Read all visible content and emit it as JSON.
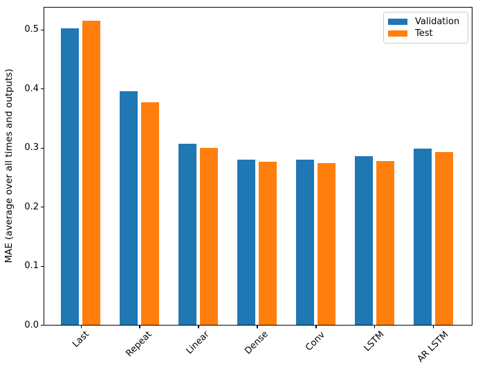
{
  "chart_data": {
    "type": "bar",
    "title": "",
    "xlabel": "",
    "ylabel": "MAE (average over all times and outputs)",
    "categories": [
      "Last",
      "Repeat",
      "Linear",
      "Dense",
      "Conv",
      "LSTM",
      "AR LSTM"
    ],
    "series": [
      {
        "name": "Validation",
        "color": "#1f77b4",
        "values": [
          0.502,
          0.395,
          0.306,
          0.28,
          0.28,
          0.286,
          0.298
        ]
      },
      {
        "name": "Test",
        "color": "#ff7f0e",
        "values": [
          0.515,
          0.377,
          0.299,
          0.276,
          0.274,
          0.277,
          0.292
        ]
      }
    ],
    "ylim": [
      0,
      0.539
    ],
    "y_ticks": [
      {
        "label": "0.0",
        "value": 0.0
      },
      {
        "label": "0.1",
        "value": 0.1
      },
      {
        "label": "0.2",
        "value": 0.2
      },
      {
        "label": "0.3",
        "value": 0.3
      },
      {
        "label": "0.4",
        "value": 0.4
      },
      {
        "label": "0.5",
        "value": 0.5
      }
    ],
    "x_tick_rotation_deg": 45,
    "grid": false,
    "legend": {
      "position": "upper right",
      "entries": [
        "Validation",
        "Test"
      ]
    }
  }
}
